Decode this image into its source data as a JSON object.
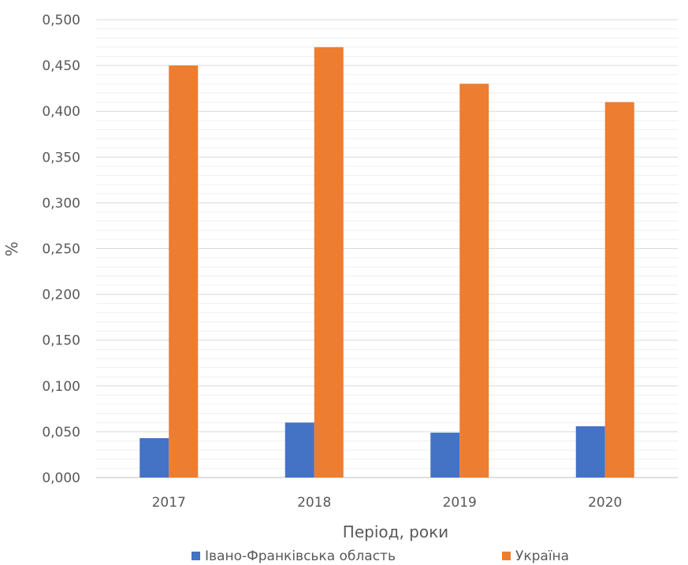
{
  "chart_data": {
    "type": "bar",
    "title": "",
    "xlabel": "Період, роки",
    "ylabel": "%",
    "ylim": [
      0,
      0.5
    ],
    "ytick_step": 0.05,
    "ytick_labels": [
      "0,000",
      "0,050",
      "0,100",
      "0,150",
      "0,200",
      "0,250",
      "0,300",
      "0,350",
      "0,400",
      "0,450",
      "0,500"
    ],
    "minor_gridlines": true,
    "categories": [
      "2017",
      "2018",
      "2019",
      "2020"
    ],
    "series": [
      {
        "name": "Івано-Франківська область",
        "color": "#4472C4",
        "values": [
          0.043,
          0.06,
          0.049,
          0.056
        ]
      },
      {
        "name": "Україна",
        "color": "#ED7D31",
        "values": [
          0.45,
          0.47,
          0.43,
          0.41
        ]
      }
    ],
    "legend_position": "bottom"
  }
}
